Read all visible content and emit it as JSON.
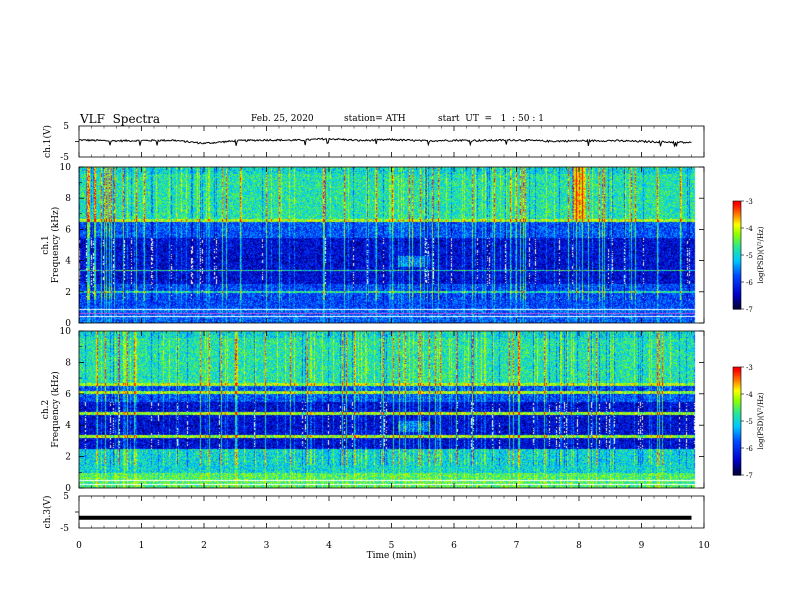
{
  "header": {
    "title": "VLF  Spectra",
    "date": "Feb. 25, 2020",
    "station": "station= ATH",
    "start": "start  UT  =   1  : 50 : 1"
  },
  "chart_data": [
    {
      "type": "line",
      "name": "ch1-waveform",
      "ylabel": "ch.1(V)",
      "ylim": [
        -5,
        5
      ],
      "yticks": [
        "5",
        "-5"
      ],
      "x": [
        0,
        0.5,
        1,
        1.5,
        2,
        2.5,
        3,
        3.5,
        4,
        4.5,
        5,
        5.5,
        6,
        6.5,
        7,
        7.5,
        8,
        8.5,
        9,
        9.5,
        9.8
      ],
      "y": [
        0.5,
        0.2,
        0.3,
        0.4,
        -0.6,
        0.2,
        0.5,
        0.4,
        0.9,
        0.3,
        0.6,
        0.2,
        0.4,
        0.3,
        0.5,
        0.1,
        0.2,
        0.3,
        0.0,
        -0.2,
        -0.4
      ]
    },
    {
      "type": "heatmap",
      "name": "ch1-spectrogram",
      "ylabel": "ch.1\nFrequency (kHz)",
      "ylim": [
        0,
        10
      ],
      "yticks": [
        "0",
        "2",
        "4",
        "6",
        "8",
        "10"
      ],
      "colorbar": {
        "label": "log(PSD)(V²/Hz)",
        "range": [
          -7,
          -3
        ],
        "ticks": [
          "-3",
          "-4",
          "-5",
          "-6",
          "-7"
        ]
      }
    },
    {
      "type": "heatmap",
      "name": "ch2-spectrogram",
      "ylabel": "ch.2\nFrequency (kHz)",
      "ylim": [
        0,
        10
      ],
      "yticks": [
        "0",
        "2",
        "4",
        "6",
        "8",
        "10"
      ],
      "colorbar": {
        "label": "log(PSD)(V²/Hz)",
        "range": [
          -7,
          -3
        ],
        "ticks": [
          "-3",
          "-4",
          "-5",
          "-6",
          "-7"
        ]
      }
    },
    {
      "type": "line",
      "name": "ch3-waveform",
      "ylabel": "ch.3(V)",
      "ylim": [
        -5,
        5
      ],
      "yticks": [
        "5",
        "-5"
      ],
      "x": [
        0,
        9.8
      ],
      "y": [
        -1.8,
        -1.8
      ]
    }
  ],
  "xaxis": {
    "label": "Time  (min)",
    "range": [
      0,
      10
    ],
    "ticks": [
      "0",
      "1",
      "2",
      "3",
      "4",
      "5",
      "6",
      "7",
      "8",
      "9",
      "10"
    ]
  }
}
